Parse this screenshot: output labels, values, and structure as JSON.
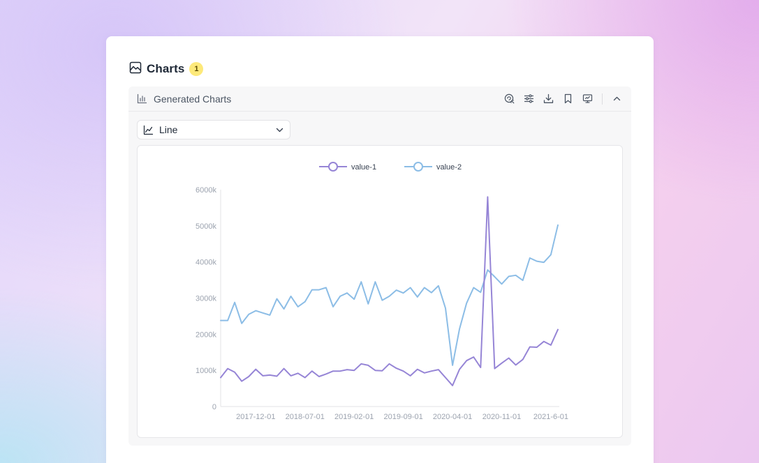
{
  "panel": {
    "title": "Charts",
    "badge": "1"
  },
  "section": {
    "title": "Generated Charts",
    "tools": [
      "ai-chart-icon",
      "settings-sliders-icon",
      "download-icon",
      "bookmark-icon",
      "present-icon",
      "chevron-up-icon"
    ]
  },
  "selector": {
    "value": "Line",
    "icon": "line-chart-icon"
  },
  "chart_data": {
    "type": "line",
    "legend_position": "top-center",
    "grid": false,
    "ylim": [
      0,
      6000
    ],
    "y_ticks": [
      "0",
      "1000k",
      "2000k",
      "3000k",
      "4000k",
      "5000k",
      "6000k"
    ],
    "y_tick_values": [
      0,
      1000,
      2000,
      3000,
      4000,
      5000,
      6000
    ],
    "x_tick_labels": [
      "2017-12-01",
      "2018-07-01",
      "2019-02-01",
      "2019-09-01",
      "2020-04-01",
      "2020-11-01",
      "2021-6-01"
    ],
    "x_tick_indices": [
      5,
      12,
      19,
      26,
      33,
      40,
      47
    ],
    "x_count": 49,
    "series": [
      {
        "name": "value-1",
        "color": "#9685d6",
        "values": [
          800,
          1050,
          950,
          700,
          830,
          1030,
          850,
          870,
          840,
          1050,
          850,
          920,
          800,
          980,
          830,
          900,
          980,
          980,
          1020,
          1000,
          1180,
          1140,
          1000,
          990,
          1180,
          1060,
          980,
          850,
          1030,
          930,
          980,
          1020,
          800,
          580,
          1030,
          1270,
          1370,
          1080,
          5800,
          1050,
          1200,
          1340,
          1150,
          1300,
          1650,
          1640,
          1800,
          1700,
          2130
        ]
      },
      {
        "name": "value-2",
        "color": "#8cbde6",
        "values": [
          2380,
          2380,
          2880,
          2300,
          2550,
          2650,
          2590,
          2530,
          2980,
          2700,
          3050,
          2760,
          2900,
          3230,
          3230,
          3290,
          2760,
          3050,
          3140,
          2970,
          3450,
          2840,
          3450,
          2940,
          3050,
          3220,
          3140,
          3290,
          3030,
          3290,
          3150,
          3340,
          2720,
          1140,
          2150,
          2860,
          3290,
          3160,
          3780,
          3590,
          3390,
          3600,
          3630,
          3490,
          4110,
          4020,
          3990,
          4200,
          5020
        ]
      }
    ]
  }
}
